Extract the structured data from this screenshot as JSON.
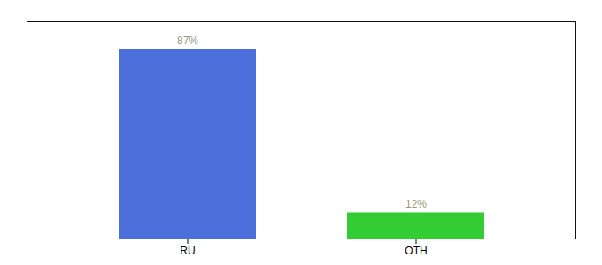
{
  "chart_data": {
    "type": "bar",
    "categories": [
      "RU",
      "OTH"
    ],
    "values": [
      87,
      12
    ],
    "value_labels": [
      "87%",
      "12%"
    ],
    "colors": [
      "#4d6fdc",
      "#33cc33"
    ],
    "ylim": [
      0,
      100
    ],
    "data_labels": true,
    "tick_labels": "x"
  }
}
